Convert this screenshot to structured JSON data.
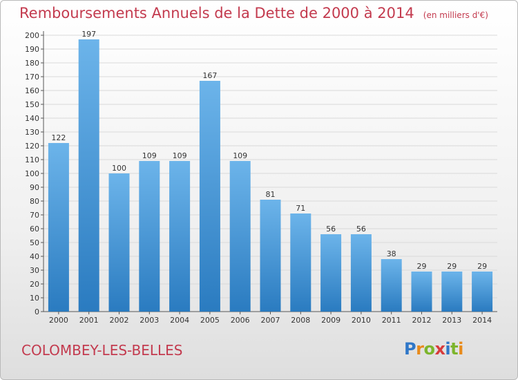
{
  "title": "Remboursements Annuels de la Dette de 2000 à 2014",
  "unit": "(en milliers d'€)",
  "city": "COLOMBEY-LES-BELLES",
  "logo": {
    "text": "Proxiti",
    "letters": [
      "P",
      "r",
      "o",
      "x",
      "i",
      "t",
      "i"
    ],
    "colors": [
      "#2f77c8",
      "#e88b1c",
      "#7db52d",
      "#d83b3b",
      "#2f77c8",
      "#7db52d",
      "#e88b1c"
    ]
  },
  "colors": {
    "title": "#c33a4e",
    "bar_top": "#6cb4ea",
    "bar_bottom": "#2a7bc0",
    "grid": "#d9d9d9",
    "axis_text": "#333333"
  },
  "chart_data": {
    "type": "bar",
    "title": "Remboursements Annuels de la Dette de 2000 à 2014",
    "categories": [
      "2000",
      "2001",
      "2002",
      "2003",
      "2004",
      "2005",
      "2006",
      "2007",
      "2008",
      "2009",
      "2010",
      "2011",
      "2012",
      "2013",
      "2014"
    ],
    "values": [
      122,
      197,
      100,
      109,
      109,
      167,
      109,
      81,
      71,
      56,
      56,
      38,
      29,
      29,
      29
    ],
    "xlabel": "",
    "ylabel": "",
    "ylim": [
      0,
      200
    ],
    "ytick_step": 10,
    "grid": true,
    "legend": "none"
  }
}
